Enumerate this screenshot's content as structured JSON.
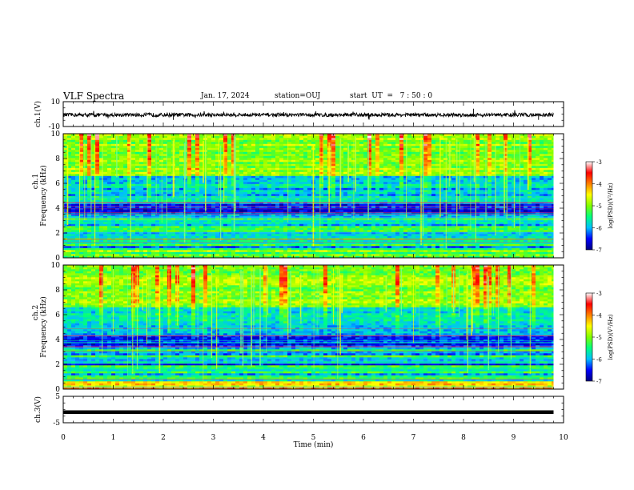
{
  "header": {
    "title": "VLF Spectra",
    "date": "Jan. 17, 2024",
    "station": "station=OUJ",
    "start": "start  UT  =   7 : 50 : 0"
  },
  "chart_data": [
    {
      "type": "line",
      "name": "panel-ch1-waveform",
      "ylabel": "ch.1(V)",
      "ylim": [
        -10,
        10
      ],
      "yticks": [
        "10",
        "-10"
      ],
      "description_level_mean": 0,
      "noise_amplitude": 1.5,
      "x_range_min": [
        0,
        9.8
      ],
      "color": "#000000"
    },
    {
      "type": "heatmap",
      "name": "panel-ch1-spectrogram",
      "ylabel_top": "ch.1",
      "ylabel": "Frequency (kHz)",
      "ylim": [
        0,
        10
      ],
      "yticks": [
        "0",
        "2",
        "4",
        "6",
        "8",
        "10"
      ],
      "x_range_min": [
        0,
        9.8
      ],
      "colorbar": {
        "label": "log(PSD)(V²/Hz)",
        "range": [
          -7,
          -3
        ],
        "ticks": [
          "-3",
          "-4",
          "-5",
          "-6",
          "-7"
        ],
        "colors": [
          "#000080",
          "#0000ff",
          "#00bfff",
          "#00ff80",
          "#80ff00",
          "#ffff00",
          "#ff8000",
          "#ff0000",
          "#ffffff"
        ]
      }
    },
    {
      "type": "heatmap",
      "name": "panel-ch2-spectrogram",
      "ylabel_top": "ch.2",
      "ylabel": "Frequency (kHz)",
      "ylim": [
        0,
        10
      ],
      "yticks": [
        "0",
        "2",
        "4",
        "6",
        "8",
        "10"
      ],
      "x_range_min": [
        0,
        9.8
      ],
      "colorbar": {
        "label": "log(PSD)(V²/Hz)",
        "range": [
          -7,
          -3
        ],
        "ticks": [
          "-3",
          "-4",
          "-5",
          "-6",
          "-7"
        ],
        "colors": [
          "#000080",
          "#0000ff",
          "#00bfff",
          "#00ff80",
          "#80ff00",
          "#ffff00",
          "#ff8000",
          "#ff0000",
          "#ffffff"
        ]
      }
    },
    {
      "type": "line",
      "name": "panel-ch3-waveform",
      "ylabel": "ch.3(V)",
      "ylim": [
        -5,
        5
      ],
      "yticks": [
        "5",
        "-5"
      ],
      "level": -1,
      "x_range_min": [
        0,
        9.8
      ],
      "color": "#000000"
    }
  ],
  "xaxis": {
    "xlabel": "Time (min)",
    "xlim": [
      0,
      10
    ],
    "ticks": [
      "0",
      "1",
      "2",
      "3",
      "4",
      "5",
      "6",
      "7",
      "8",
      "9",
      "10"
    ]
  }
}
